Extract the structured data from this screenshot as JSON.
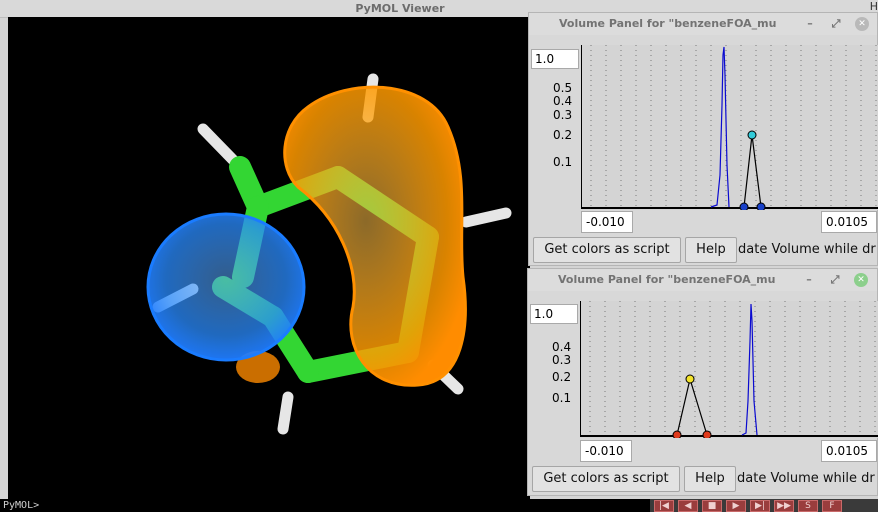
{
  "main_window": {
    "title": "PyMOL Viewer",
    "corner_text": "H",
    "command_prompt": "PyMOL>"
  },
  "movie_controls": [
    "|◀",
    "◀",
    "■",
    "▶",
    "▶|",
    "▶▶",
    "S",
    "F"
  ],
  "panels": [
    {
      "title": "Volume Panel for \"benzeneFOA_mu",
      "level_value": "1.0",
      "y_ticks": [
        "0.5",
        "0.4",
        "0.3",
        "0.2",
        "0.1"
      ],
      "range_min": "-0.010",
      "range_max": "0.0105",
      "get_colors_label": "Get colors as script",
      "help_label": "Help",
      "update_label": "date Volume while dr",
      "point_color": "#33cbd9"
    },
    {
      "title": "Volume Panel for \"benzeneFOA_mu",
      "level_value": "1.0",
      "y_ticks": [
        "0.4",
        "0.3",
        "0.2",
        "0.1"
      ],
      "range_min": "-0.010",
      "range_max": "0.0105",
      "get_colors_label": "Get colors as script",
      "help_label": "Help",
      "update_label": "date Volume while dr",
      "point_color": "#f2e22a"
    }
  ],
  "colors": {
    "carbon": "#33d633",
    "hydrogen": "#e6e6e6",
    "negative_volume": "#2a8cff",
    "positive_volume": "#ff9a00",
    "histogram": "#0a0ad0"
  }
}
